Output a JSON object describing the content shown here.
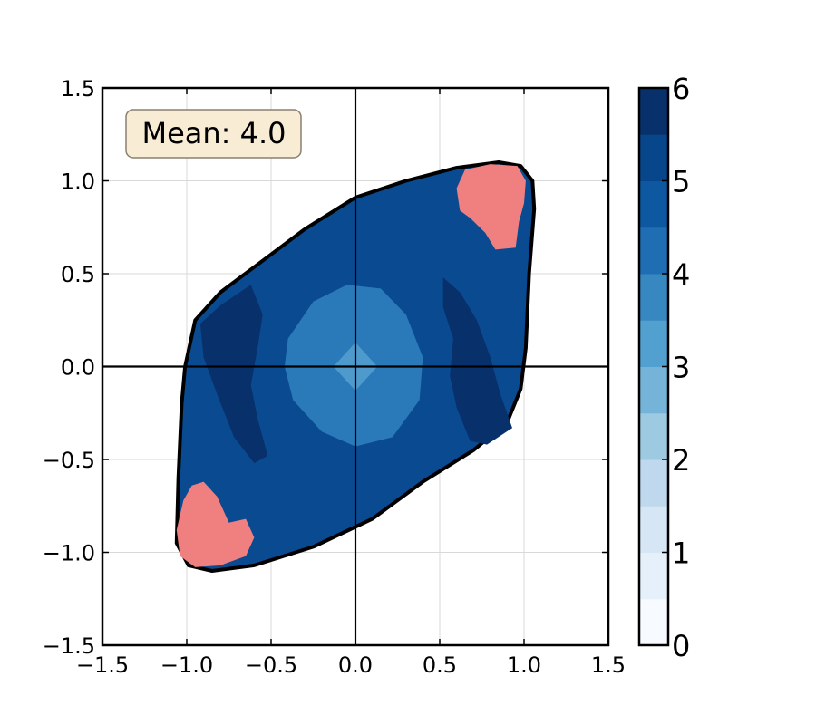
{
  "chart_data": {
    "type": "heatmap",
    "title": "",
    "xlabel": "",
    "ylabel": "",
    "xlim": [
      -1.5,
      1.5
    ],
    "ylim": [
      -1.5,
      1.5
    ],
    "x_ticks": [
      -1.5,
      -1.0,
      -0.5,
      0.0,
      0.5,
      1.0,
      1.5
    ],
    "x_tick_labels": [
      "−1.5",
      "−1.0",
      "−0.5",
      "0.0",
      "0.5",
      "1.0",
      "1.5"
    ],
    "y_ticks": [
      -1.5,
      -1.0,
      -0.5,
      0.0,
      0.5,
      1.0,
      1.5
    ],
    "y_tick_labels": [
      "−1.5",
      "−1.0",
      "−0.5",
      "0.0",
      "0.5",
      "1.0",
      "1.5"
    ],
    "grid": true,
    "reference_lines": {
      "x": 0,
      "y": 0
    },
    "annotation": "Mean: 4.0",
    "colormap": "Blues",
    "colorbar": {
      "min": 0,
      "max": 6,
      "levels": 12,
      "ticks": [
        0,
        1,
        2,
        3,
        4,
        5,
        6
      ],
      "tick_labels": [
        "0",
        "1",
        "2",
        "3",
        "4",
        "5",
        "6"
      ],
      "colors": [
        "#f7fbff",
        "#e6f0fa",
        "#d6e6f4",
        "#bfd8ed",
        "#9dcae1",
        "#75b4d8",
        "#52a0cf",
        "#3787c0",
        "#1f6eb3",
        "#0e58a2",
        "#08468c",
        "#08306b"
      ]
    },
    "regions": [
      {
        "name": "outer-band",
        "value": 5.2,
        "color": "#0a4a90"
      },
      {
        "name": "high-band-left",
        "value": 5.8,
        "color": "#08306b"
      },
      {
        "name": "high-band-right",
        "value": 5.8,
        "color": "#08306b"
      },
      {
        "name": "center-ring",
        "value": 4.2,
        "color": "#2a7ab9"
      },
      {
        "name": "center-core",
        "value": 3.2,
        "color": "#4f9acd"
      },
      {
        "name": "corner-top-right",
        "value": "above-max",
        "color": "#f08080"
      },
      {
        "name": "corner-bottom-left",
        "value": "above-max",
        "color": "#f08080"
      }
    ]
  }
}
